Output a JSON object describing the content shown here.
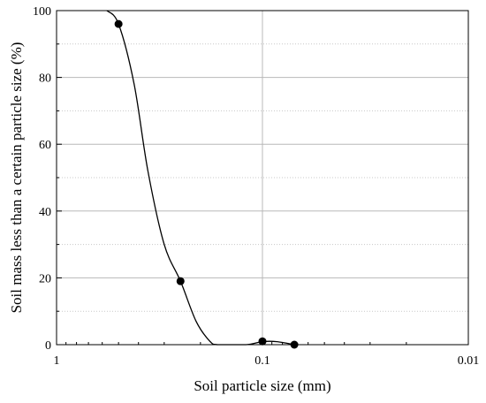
{
  "chart_data": {
    "type": "scatter",
    "title": "",
    "xlabel": "Soil particle size (mm)",
    "ylabel": "Soil mass less than a certain particle size (%)",
    "x_scale": "log",
    "x_reversed": true,
    "xlim": [
      1,
      0.01
    ],
    "ylim": [
      0,
      100
    ],
    "x_ticks": [
      1,
      0.1,
      0.01
    ],
    "x_tick_labels": [
      "1",
      "0.1",
      "0.01"
    ],
    "y_ticks": [
      0,
      20,
      40,
      60,
      80,
      100
    ],
    "y_tick_labels": [
      "0",
      "20",
      "40",
      "60",
      "80",
      "100"
    ],
    "grid": true,
    "legend": "none",
    "series": [
      {
        "points": [
          {
            "x": 0.5,
            "y": 96
          },
          {
            "x": 0.25,
            "y": 19
          },
          {
            "x": 0.1,
            "y": 1
          },
          {
            "x": 0.07,
            "y": 0
          }
        ],
        "marker_color": "#000000",
        "fit_curve": [
          {
            "x": 0.57,
            "y": 100
          },
          {
            "x": 0.5,
            "y": 96
          },
          {
            "x": 0.42,
            "y": 78
          },
          {
            "x": 0.36,
            "y": 52
          },
          {
            "x": 0.3,
            "y": 30
          },
          {
            "x": 0.25,
            "y": 19
          },
          {
            "x": 0.21,
            "y": 7
          },
          {
            "x": 0.18,
            "y": 1
          },
          {
            "x": 0.165,
            "y": 0
          },
          {
            "x": 0.12,
            "y": 0
          },
          {
            "x": 0.1,
            "y": 0.9
          },
          {
            "x": 0.085,
            "y": 0.9
          },
          {
            "x": 0.07,
            "y": 0
          }
        ]
      }
    ]
  }
}
